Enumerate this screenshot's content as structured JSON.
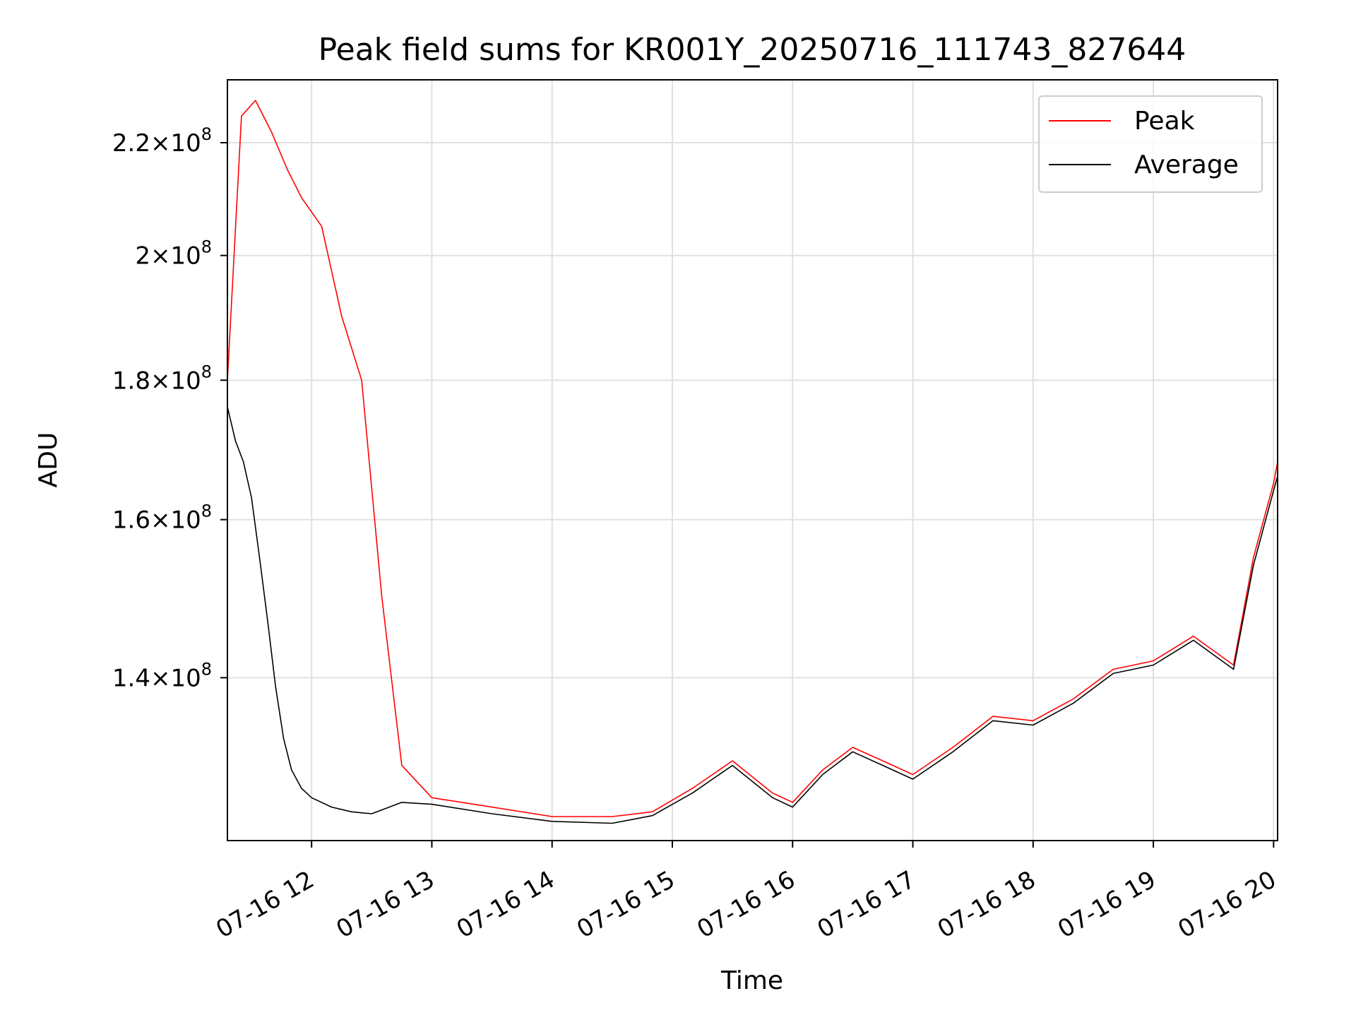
{
  "chart_data": {
    "type": "line",
    "title": "Peak field sums for KR001Y_20250716_111743_827644",
    "xlabel": "Time",
    "ylabel": "ADU",
    "x_range": [
      "2025-07-16T11:18",
      "2025-07-16T20:02"
    ],
    "ylim": [
      122000000,
      232000000
    ],
    "y_scale": "log",
    "grid": true,
    "legend_position": "top-right",
    "x_ticks": [
      {
        "value": "2025-07-16T12:00",
        "label": "07-16 12"
      },
      {
        "value": "2025-07-16T13:00",
        "label": "07-16 13"
      },
      {
        "value": "2025-07-16T14:00",
        "label": "07-16 14"
      },
      {
        "value": "2025-07-16T15:00",
        "label": "07-16 15"
      },
      {
        "value": "2025-07-16T16:00",
        "label": "07-16 16"
      },
      {
        "value": "2025-07-16T17:00",
        "label": "07-16 17"
      },
      {
        "value": "2025-07-16T18:00",
        "label": "07-16 18"
      },
      {
        "value": "2025-07-16T19:00",
        "label": "07-16 19"
      },
      {
        "value": "2025-07-16T20:00",
        "label": "07-16 20"
      }
    ],
    "y_ticks": [
      {
        "value": 140000000,
        "mantissa": "1.4",
        "exponent": "8"
      },
      {
        "value": 160000000,
        "mantissa": "1.6",
        "exponent": "8"
      },
      {
        "value": 180000000,
        "mantissa": "1.8",
        "exponent": "8"
      },
      {
        "value": 200000000,
        "mantissa": "2",
        "exponent": "8"
      },
      {
        "value": 220000000,
        "mantissa": "2.2",
        "exponent": "8"
      }
    ],
    "tick_multiplier": "×10",
    "series": [
      {
        "name": "Peak",
        "color": "#ff0000",
        "x": [
          "2025-07-16T11:18",
          "2025-07-16T11:25",
          "2025-07-16T11:32",
          "2025-07-16T11:40",
          "2025-07-16T11:48",
          "2025-07-16T11:55",
          "2025-07-16T12:05",
          "2025-07-16T12:15",
          "2025-07-16T12:25",
          "2025-07-16T12:35",
          "2025-07-16T12:45",
          "2025-07-16T13:00",
          "2025-07-16T13:30",
          "2025-07-16T14:00",
          "2025-07-16T14:30",
          "2025-07-16T14:50",
          "2025-07-16T15:10",
          "2025-07-16T15:30",
          "2025-07-16T15:50",
          "2025-07-16T16:00",
          "2025-07-16T16:15",
          "2025-07-16T16:30",
          "2025-07-16T16:45",
          "2025-07-16T17:00",
          "2025-07-16T17:20",
          "2025-07-16T17:40",
          "2025-07-16T18:00",
          "2025-07-16T18:20",
          "2025-07-16T18:40",
          "2025-07-16T19:00",
          "2025-07-16T19:20",
          "2025-07-16T19:40",
          "2025-07-16T19:50",
          "2025-07-16T20:00",
          "2025-07-16T20:02"
        ],
        "values": [
          180000000,
          225000000,
          228000000,
          222000000,
          215000000,
          210000000,
          205000000,
          190000000,
          180000000,
          150000000,
          130000000,
          126500000,
          125500000,
          124500000,
          124500000,
          125000000,
          127500000,
          130500000,
          127000000,
          126000000,
          129500000,
          132000000,
          130500000,
          129000000,
          132000000,
          135500000,
          135000000,
          137500000,
          141000000,
          142000000,
          145000000,
          141500000,
          155000000,
          165000000,
          168000000
        ]
      },
      {
        "name": "Average",
        "color": "#000000",
        "x": [
          "2025-07-16T11:18",
          "2025-07-16T11:22",
          "2025-07-16T11:26",
          "2025-07-16T11:30",
          "2025-07-16T11:34",
          "2025-07-16T11:38",
          "2025-07-16T11:42",
          "2025-07-16T11:46",
          "2025-07-16T11:50",
          "2025-07-16T11:55",
          "2025-07-16T12:00",
          "2025-07-16T12:10",
          "2025-07-16T12:20",
          "2025-07-16T12:30",
          "2025-07-16T12:45",
          "2025-07-16T13:00",
          "2025-07-16T13:30",
          "2025-07-16T14:00",
          "2025-07-16T14:30",
          "2025-07-16T14:50",
          "2025-07-16T15:10",
          "2025-07-16T15:30",
          "2025-07-16T15:50",
          "2025-07-16T16:00",
          "2025-07-16T16:15",
          "2025-07-16T16:30",
          "2025-07-16T16:45",
          "2025-07-16T17:00",
          "2025-07-16T17:20",
          "2025-07-16T17:40",
          "2025-07-16T18:00",
          "2025-07-16T18:20",
          "2025-07-16T18:40",
          "2025-07-16T19:00",
          "2025-07-16T19:20",
          "2025-07-16T19:40",
          "2025-07-16T19:50",
          "2025-07-16T20:00",
          "2025-07-16T20:02"
        ],
        "values": [
          176000000,
          171000000,
          168000000,
          163000000,
          155000000,
          147000000,
          139000000,
          133000000,
          129500000,
          127500000,
          126500000,
          125500000,
          125000000,
          124800000,
          126000000,
          125800000,
          124800000,
          124000000,
          123800000,
          124600000,
          127000000,
          130000000,
          126500000,
          125500000,
          129000000,
          131500000,
          130000000,
          128500000,
          131500000,
          135000000,
          134500000,
          137000000,
          140500000,
          141500000,
          144500000,
          141000000,
          154000000,
          164000000,
          166000000
        ]
      }
    ]
  }
}
